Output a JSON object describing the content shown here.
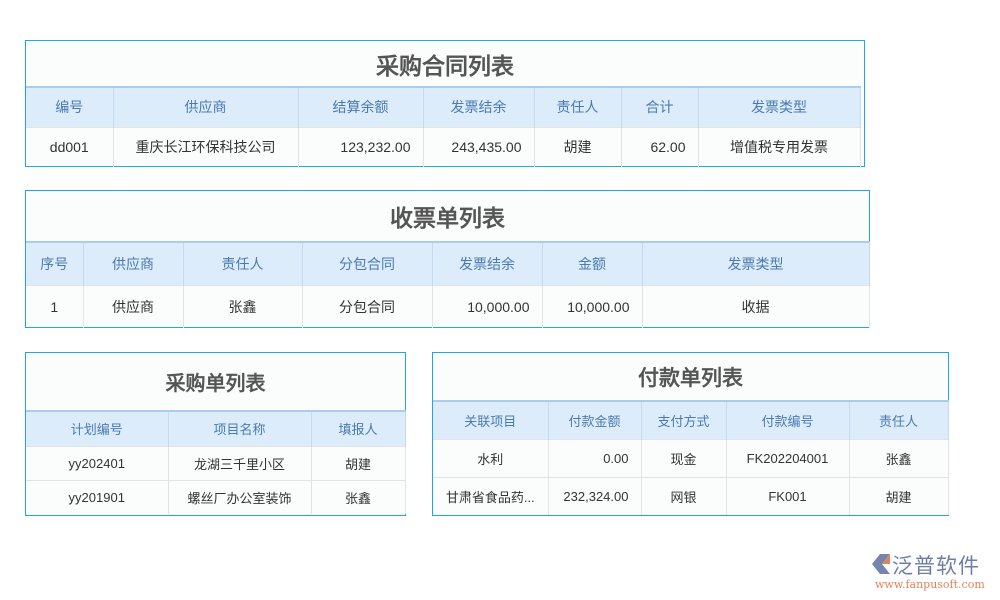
{
  "purchase_contracts": {
    "title": "采购合同列表",
    "columns": [
      "编号",
      "供应商",
      "结算余额",
      "发票结余",
      "责任人",
      "合计",
      "发票类型"
    ],
    "rows": [
      [
        "dd001",
        "重庆长江环保科技公司",
        "123,232.00",
        "243,435.00",
        "胡建",
        "62.00",
        "增值税专用发票"
      ]
    ]
  },
  "invoice_receipts": {
    "title": "收票单列表",
    "columns": [
      "序号",
      "供应商",
      "责任人",
      "分包合同",
      "发票结余",
      "金额",
      "发票类型"
    ],
    "rows": [
      [
        "1",
        "供应商",
        "张鑫",
        "分包合同",
        "10,000.00",
        "10,000.00",
        "收据"
      ]
    ]
  },
  "purchase_orders": {
    "title": "采购单列表",
    "columns": [
      "计划编号",
      "项目名称",
      "填报人"
    ],
    "rows": [
      [
        "yy202401",
        "龙湖三千里小区",
        "胡建"
      ],
      [
        "yy201901",
        "螺丝厂办公室装饰",
        "张鑫"
      ]
    ]
  },
  "payments": {
    "title": "付款单列表",
    "columns": [
      "关联项目",
      "付款金额",
      "支付方式",
      "付款编号",
      "责任人"
    ],
    "rows": [
      [
        "水利",
        "0.00",
        "现金",
        "FK202204001",
        "张鑫"
      ],
      [
        "甘肃省食品药...",
        "232,324.00",
        "网银",
        "FK001",
        "胡建"
      ]
    ]
  },
  "logo": {
    "name": "泛普软件",
    "url": "www.fanpusoft.com"
  },
  "colors": {
    "border": "#1ea7e4",
    "header_bg": "#dcecfa",
    "header_text": "#4a7bb0"
  }
}
